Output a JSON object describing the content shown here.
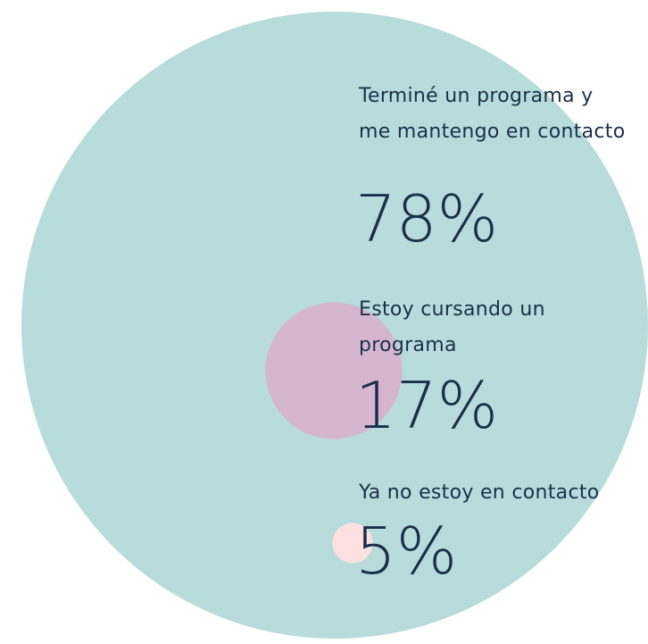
{
  "chart_data": {
    "type": "bubble",
    "categories": [
      "Terminé un programa y me mantengo en contacto",
      "Estoy cursando un programa",
      "Ya no estoy en contacto"
    ],
    "values": [
      78,
      17,
      5
    ],
    "value_labels": [
      "78%",
      "17%",
      "5%"
    ],
    "colors": [
      "#b8dbdb",
      "#d6b5cf",
      "#fde1e1"
    ]
  }
}
